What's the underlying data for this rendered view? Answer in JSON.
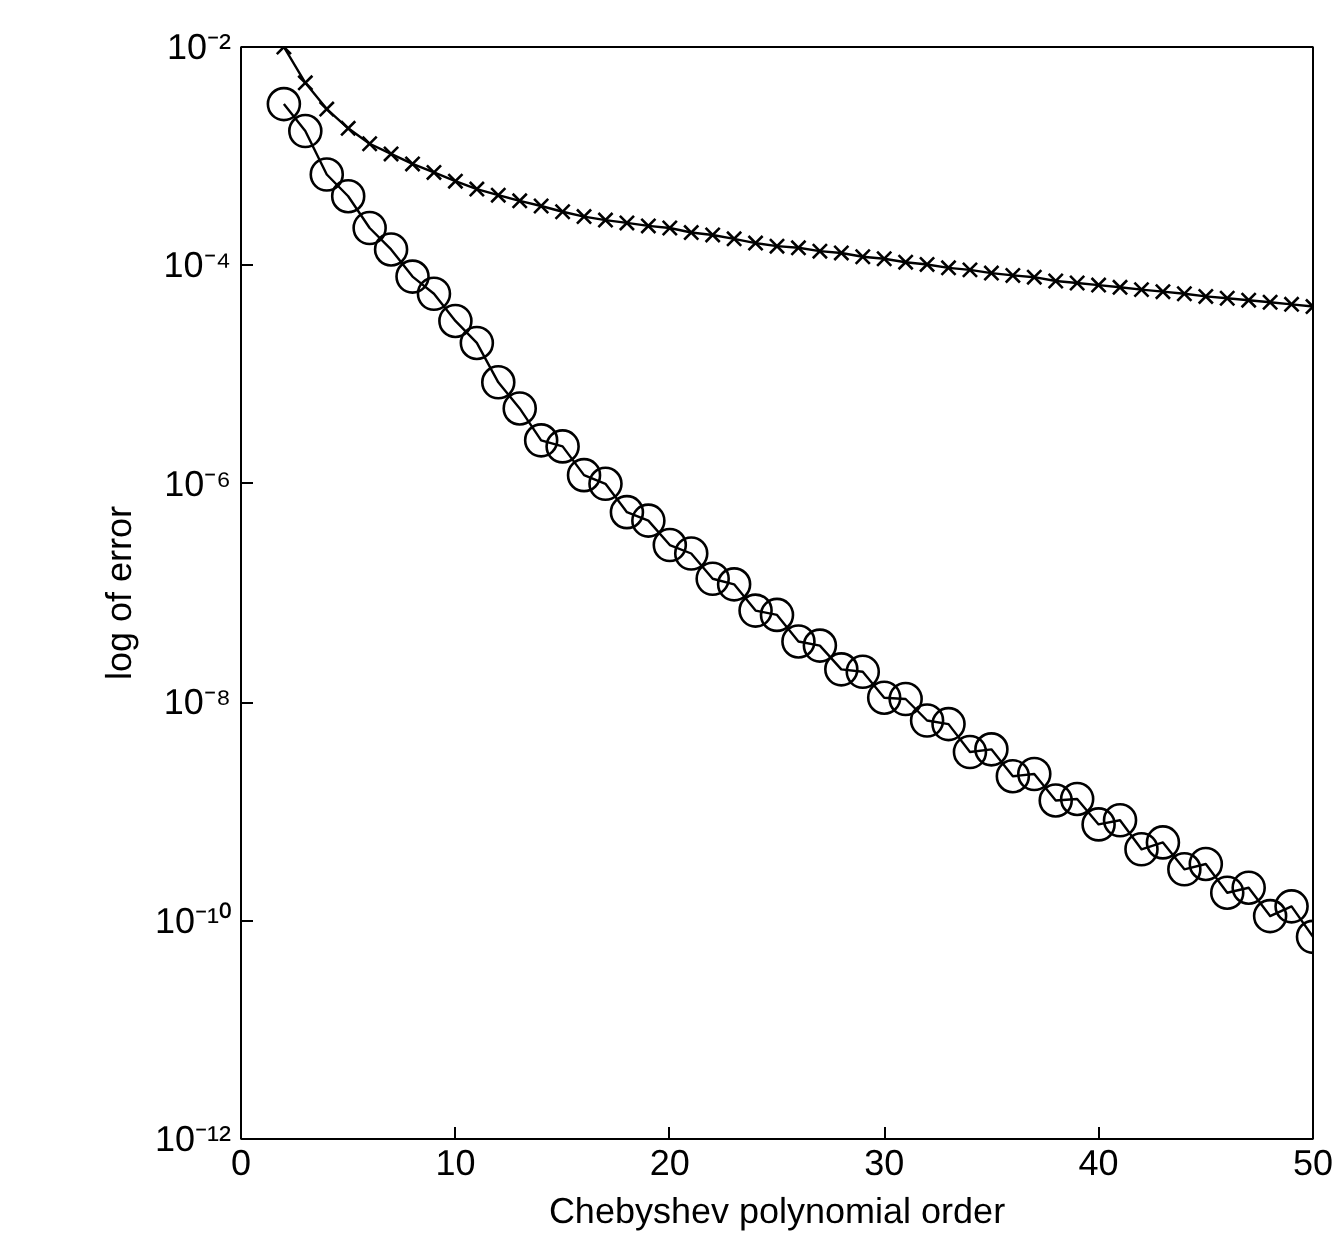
{
  "chart_data": {
    "type": "line",
    "xlabel": "Chebyshev polynomial order",
    "ylabel": "log of error",
    "log": "y",
    "grid": false,
    "line_style": "solid",
    "x": [
      2,
      3,
      4,
      5,
      6,
      7,
      8,
      9,
      10,
      11,
      12,
      13,
      14,
      15,
      16,
      17,
      18,
      19,
      20,
      21,
      22,
      23,
      24,
      25,
      26,
      27,
      28,
      29,
      30,
      31,
      32,
      33,
      34,
      35,
      36,
      37,
      38,
      39,
      40,
      41,
      42,
      43,
      44,
      45,
      46,
      47,
      48,
      49,
      50
    ],
    "xlim": [
      0,
      50
    ],
    "xticks": [
      0,
      10,
      20,
      30,
      40,
      50
    ],
    "ylim": [
      1e-12,
      0.01
    ],
    "yticks": [
      {
        "value": 1e-12,
        "label": "10⁻¹²"
      },
      {
        "value": 1e-10,
        "label": "10⁻¹⁰"
      },
      {
        "value": 1e-08,
        "label": "10⁻⁸"
      },
      {
        "value": 1e-06,
        "label": "10⁻⁶"
      },
      {
        "value": 0.0001,
        "label": "10⁻⁴"
      },
      {
        "value": 0.01,
        "label": "10⁻²"
      }
    ],
    "series": [
      {
        "color": "#000000",
        "marker": "cross",
        "values": [
          0.01,
          0.0047,
          0.0027,
          0.0018,
          0.0013,
          0.00105,
          0.00085,
          0.00071,
          0.00059,
          0.0005,
          0.00044,
          0.00039,
          0.00035,
          0.00031,
          0.00028,
          0.00026,
          0.000245,
          0.00023,
          0.00022,
          0.0002,
          0.00019,
          0.000175,
          0.00016,
          0.00015,
          0.000145,
          0.000135,
          0.00013,
          0.00012,
          0.000115,
          0.000107,
          0.000102,
          9.5e-05,
          9.1e-05,
          8.5e-05,
          8.1e-05,
          7.8e-05,
          7.2e-05,
          6.9e-05,
          6.6e-05,
          6.3e-05,
          6e-05,
          5.75e-05,
          5.5e-05,
          5.2e-05,
          5e-05,
          4.8e-05,
          4.6e-05,
          4.4e-05,
          4.2e-05
        ]
      },
      {
        "color": "#000000",
        "marker": "circle",
        "values": [
          0.003,
          0.0017,
          0.00068,
          0.00043,
          0.00022,
          0.00014,
          7.9e-05,
          5.5e-05,
          3.1e-05,
          1.95e-05,
          8.5e-06,
          4.9e-06,
          2.5e-06,
          2.2e-06,
          1.2e-06,
          1e-06,
          5.5e-07,
          4.6e-07,
          2.75e-07,
          2.3e-07,
          1.35e-07,
          1.2e-07,
          6.9e-08,
          6.3e-08,
          3.6e-08,
          3.3e-08,
          2e-08,
          1.9e-08,
          1.1e-08,
          1.07e-08,
          6.8e-09,
          6.3e-09,
          3.5e-09,
          3.7e-09,
          2.1e-09,
          2.2e-09,
          1.26e-09,
          1.3e-09,
          7.6e-10,
          8.3e-10,
          4.5e-10,
          5.2e-10,
          2.95e-10,
          3.3e-10,
          1.8e-10,
          2e-10,
          1.1e-10,
          1.35e-10,
          7.1e-11
        ]
      }
    ]
  }
}
